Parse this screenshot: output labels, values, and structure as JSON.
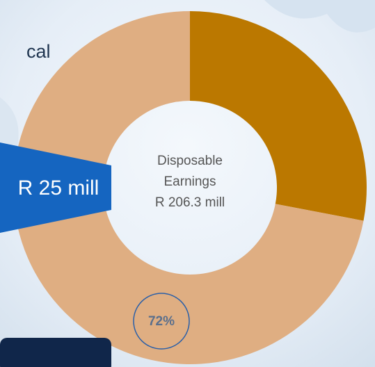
{
  "chart_data": {
    "type": "pie",
    "donut": true,
    "values": [
      28,
      72
    ],
    "value_labels": [
      null,
      "72%"
    ],
    "colors": [
      "#bb7800",
      "#dfae82"
    ],
    "center_label": [
      "Disposable",
      "Earnings",
      "R 206.3 mill"
    ],
    "annotations": [
      "cal",
      "R 25 mill"
    ]
  }
}
